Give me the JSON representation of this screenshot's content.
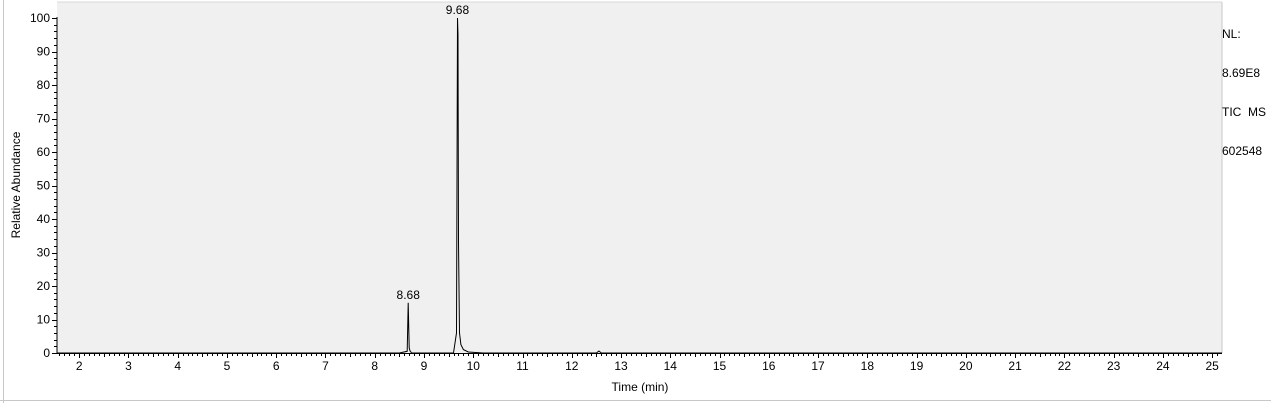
{
  "chart_data": {
    "type": "line",
    "xlabel": "Time (min)",
    "ylabel": "Relative Abundance",
    "xlim": [
      1.55,
      25.2
    ],
    "ylim": [
      0,
      100
    ],
    "x_ticks": [
      2,
      3,
      4,
      5,
      6,
      7,
      8,
      9,
      10,
      11,
      12,
      13,
      14,
      15,
      16,
      17,
      18,
      19,
      20,
      21,
      22,
      23,
      24,
      25
    ],
    "y_ticks": [
      0,
      10,
      20,
      30,
      40,
      50,
      60,
      70,
      80,
      90,
      100
    ],
    "grid": false,
    "series": [
      {
        "x": [
          1.55,
          8.5,
          8.66,
          8.68,
          8.7,
          8.72,
          8.75,
          8.9,
          9.6,
          9.66,
          9.68,
          9.69,
          9.7,
          9.72,
          9.75,
          9.8,
          9.9,
          10.2,
          12.5,
          12.55,
          12.6,
          25.2
        ],
        "y": [
          0,
          0,
          0.5,
          15,
          1.5,
          0.5,
          0,
          0,
          0,
          6,
          100,
          95,
          33,
          6,
          2.5,
          1,
          0.3,
          0,
          0,
          0.6,
          0,
          0
        ]
      }
    ],
    "annotations": [
      {
        "label": "9.68",
        "x": 9.68,
        "y": 100
      },
      {
        "label": "8.68",
        "x": 8.68,
        "y": 15
      }
    ]
  },
  "header_right": {
    "nl_label": "NL:",
    "nl_value": "8.69E8",
    "scan_filter": "TIC  MS",
    "sample_id": "602548"
  }
}
